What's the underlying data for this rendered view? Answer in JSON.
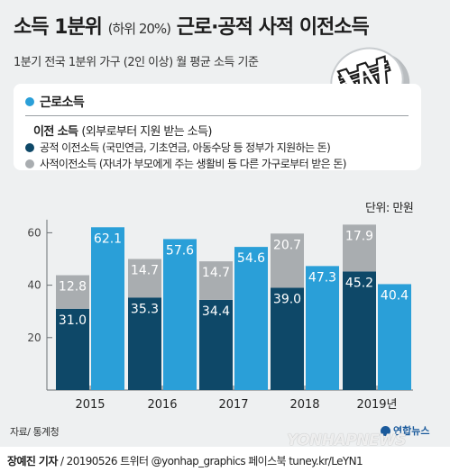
{
  "header": {
    "title_main": "소득 1분위",
    "title_paren": "(하위 20%)",
    "title_rest": "근로·공적 사적 이전소득",
    "subtitle": "1분기 전국 1분위 가구 (2인 이상) 월 평균 소득 기준",
    "won_symbol": "₩"
  },
  "legend": {
    "labor": "근로소득",
    "transfer_title": "이전 소득",
    "transfer_desc": "(외부로부터 지원 받는 소득)",
    "public": "공적 이전소득 (국민연금, 기초연금, 아동수당 등 정부가 지원하는 돈)",
    "private": "사적이전소득 (자녀가 부모에게 주는 생활비 등 다른 가구로부터 받은 돈)"
  },
  "unit_label": "단위: 만원",
  "colors": {
    "labor": "#2a9fd8",
    "public": "#0e4868",
    "private": "#a9adb0",
    "background": "#eef0f1",
    "axis": "#6b7074"
  },
  "chart_data": {
    "type": "bar",
    "stacked_group": [
      "공적 이전소득",
      "사적이전소득"
    ],
    "categories": [
      "2015",
      "2016",
      "2017",
      "2018",
      "2019년"
    ],
    "series": [
      {
        "name": "공적 이전소득",
        "values": [
          31.0,
          35.3,
          34.4,
          39.0,
          45.2
        ]
      },
      {
        "name": "사적이전소득",
        "values": [
          12.8,
          14.7,
          14.7,
          20.7,
          17.9
        ]
      },
      {
        "name": "근로소득",
        "values": [
          62.1,
          57.6,
          54.6,
          47.3,
          40.4
        ]
      }
    ],
    "value_labels": {
      "공적 이전소득": [
        "31.0",
        "35.3",
        "34.4",
        "39.0",
        "45.2"
      ],
      "사적이전소득": [
        "12.8",
        "14.7",
        "14.7",
        "20.7",
        "17.9"
      ],
      "근로소득": [
        "62.1",
        "57.6",
        "54.6",
        "47.3",
        "40.4"
      ]
    },
    "y_ticks": [
      "0",
      "20",
      "40",
      "60"
    ],
    "ylim": [
      0,
      70
    ],
    "grid": false,
    "ylabel": "",
    "xlabel": ""
  },
  "footer": {
    "source": "자료/ 통계청",
    "credit_name": "장예진 기자",
    "credit_rest": " / 20190526  트위터 @yonhap_graphics  페이스북 tuney.kr/LeYN1",
    "logo": "연합뉴스",
    "watermark": "YONHAPNEWS"
  }
}
